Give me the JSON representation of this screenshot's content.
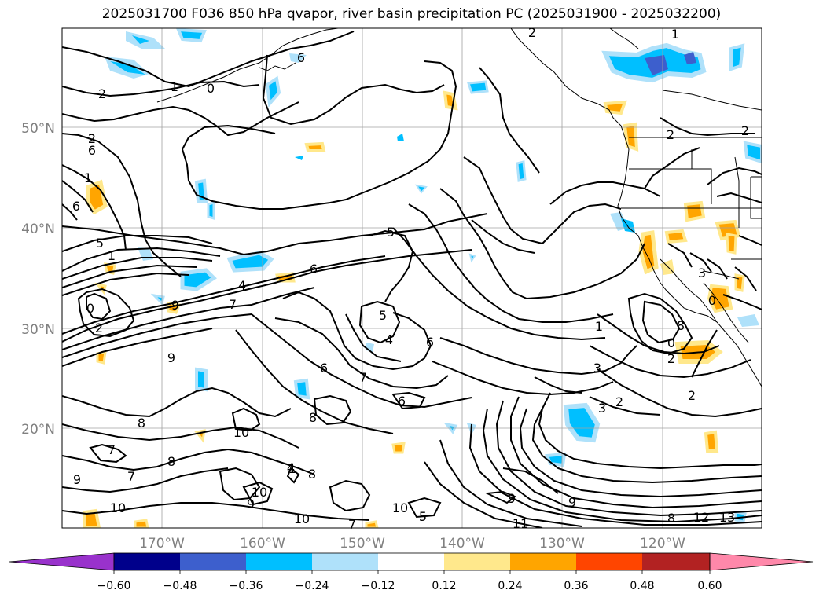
{
  "title": "2025031700 F036 850 hPa qvapor, river basin precipitation PC (2025031900 - 2025032200)",
  "lat_labels": [
    "50°N",
    "40°N",
    "30°N",
    "20°N"
  ],
  "lon_labels": [
    "170°W",
    "160°W",
    "150°W",
    "140°W",
    "130°W",
    "120°W"
  ],
  "colorbar": {
    "tick_labels": [
      "−0.60",
      "−0.48",
      "−0.36",
      "−0.24",
      "−0.12",
      "0.12",
      "0.24",
      "0.36",
      "0.48",
      "0.60"
    ],
    "colors": [
      "#9932cc",
      "#00008b",
      "#3d5fcd",
      "#00bfff",
      "#afe1fa",
      "#ffffff",
      "#ffe88c",
      "#ffa500",
      "#ff4500",
      "#b22222",
      "#ff88aa"
    ]
  },
  "contour_labels": [
    "2",
    "1",
    "0",
    "5",
    "6",
    "7",
    "6",
    "5",
    "1",
    "0",
    "2",
    "9",
    "8",
    "10",
    "7",
    "10",
    "8",
    "6",
    "7",
    "5",
    "4",
    "6",
    "7",
    "8",
    "9",
    "10",
    "11",
    "12",
    "13",
    "3",
    "2",
    "0",
    "2",
    "1",
    "3",
    "2",
    "8",
    "9",
    "6",
    "9",
    "10",
    "9",
    "10",
    "8",
    "5",
    "7",
    "4",
    "2",
    "3",
    "2",
    "2",
    "6",
    "1",
    "6",
    "0",
    "2",
    "8",
    "1",
    "4",
    "9",
    "1"
  ]
}
